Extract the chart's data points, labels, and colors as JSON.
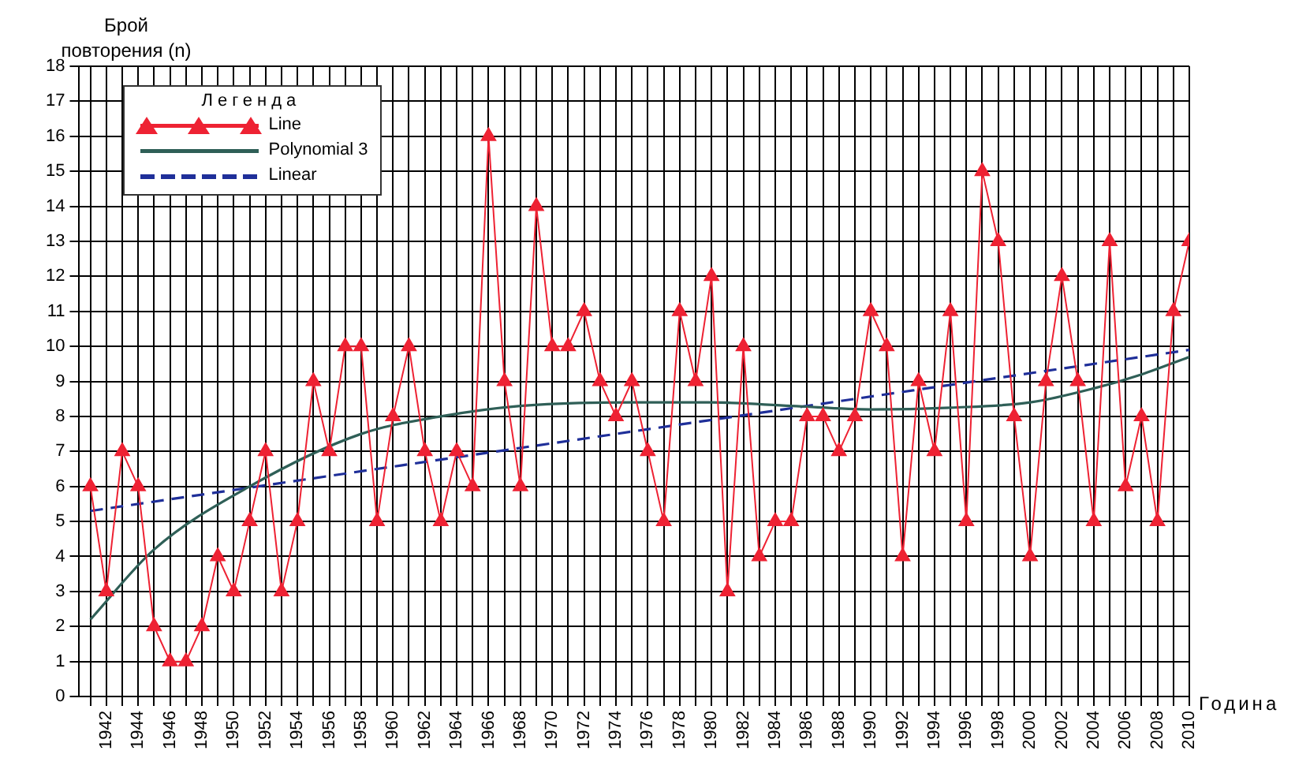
{
  "chart_data": {
    "type": "line",
    "ylabel": "Брой\nповторения (n)",
    "xlabel": "Година",
    "legend_title": "Легенда",
    "legend": "top left",
    "grid": true,
    "x": [
      1941,
      1942,
      1943,
      1944,
      1945,
      1946,
      1947,
      1948,
      1949,
      1950,
      1951,
      1952,
      1953,
      1954,
      1955,
      1956,
      1957,
      1958,
      1959,
      1960,
      1961,
      1962,
      1963,
      1964,
      1965,
      1966,
      1967,
      1968,
      1969,
      1970,
      1971,
      1972,
      1973,
      1974,
      1975,
      1976,
      1977,
      1978,
      1979,
      1980,
      1981,
      1982,
      1983,
      1984,
      1985,
      1986,
      1987,
      1988,
      1989,
      1990,
      1991,
      1992,
      1993,
      1994,
      1995,
      1996,
      1997,
      1998,
      1999,
      2000,
      2001,
      2002,
      2003,
      2004,
      2005,
      2006,
      2007,
      2008,
      2009,
      2010
    ],
    "series": [
      {
        "name": "Line",
        "color": "#ee2233",
        "marker": "triangle",
        "line_style": "solid",
        "values": [
          6,
          3,
          7,
          6,
          2,
          1,
          1,
          2,
          4,
          3,
          5,
          7,
          3,
          5,
          9,
          7,
          10,
          10,
          5,
          8,
          10,
          7,
          5,
          7,
          6,
          16,
          9,
          6,
          14,
          10,
          10,
          11,
          9,
          8,
          9,
          7,
          5,
          11,
          9,
          12,
          3,
          10,
          4,
          5,
          5,
          8,
          8,
          7,
          8,
          11,
          10,
          4,
          9,
          7,
          11,
          5,
          15,
          13,
          8,
          4,
          9,
          12,
          9,
          5,
          13,
          6,
          8,
          5,
          11,
          13
        ]
      },
      {
        "name": "Polynomial 3",
        "color": "#2f5f57",
        "marker": "none",
        "line_style": "solid",
        "x": [
          1941,
          1945,
          1951,
          1958,
          1963,
          1968,
          1975,
          1980,
          1985,
          1990,
          1995,
          2000,
          2004,
          2007,
          2010
        ],
        "values": [
          2.2,
          4.2,
          6.0,
          7.5,
          8.0,
          8.3,
          8.4,
          8.4,
          8.3,
          8.2,
          8.25,
          8.4,
          8.8,
          9.2,
          9.7
        ]
      },
      {
        "name": "Linear",
        "color": "#1f2f99",
        "marker": "none",
        "line_style": "dashed",
        "x": [
          1941,
          2010
        ],
        "values": [
          5.3,
          9.9
        ]
      }
    ],
    "xlim": [
      1940.3,
      2010
    ],
    "xticks": [
      {
        "value": 1941,
        "label": null
      },
      1942,
      {
        "value": 1943,
        "label": null
      },
      1944,
      {
        "value": 1945,
        "label": null
      },
      1946,
      {
        "value": 1947,
        "label": null
      },
      1948,
      {
        "value": 1949,
        "label": null
      },
      1950,
      {
        "value": 1951,
        "label": null
      },
      1952,
      {
        "value": 1953,
        "label": null
      },
      1954,
      {
        "value": 1955,
        "label": null
      },
      1956,
      {
        "value": 1957,
        "label": null
      },
      1958,
      {
        "value": 1959,
        "label": null
      },
      1960,
      {
        "value": 1961,
        "label": null
      },
      1962,
      {
        "value": 1963,
        "label": null
      },
      1964,
      {
        "value": 1965,
        "label": null
      },
      1966,
      {
        "value": 1967,
        "label": null
      },
      1968,
      {
        "value": 1969,
        "label": null
      },
      1970,
      {
        "value": 1971,
        "label": null
      },
      1972,
      {
        "value": 1973,
        "label": null
      },
      1974,
      {
        "value": 1975,
        "label": null
      },
      1976,
      {
        "value": 1977,
        "label": null
      },
      1978,
      {
        "value": 1979,
        "label": null
      },
      1980,
      {
        "value": 1981,
        "label": null
      },
      1982,
      {
        "value": 1983,
        "label": null
      },
      1984,
      {
        "value": 1985,
        "label": null
      },
      1986,
      {
        "value": 1987,
        "label": null
      },
      1988,
      {
        "value": 1989,
        "label": null
      },
      1990,
      {
        "value": 1991,
        "label": null
      },
      1992,
      {
        "value": 1993,
        "label": null
      },
      1994,
      {
        "value": 1995,
        "label": null
      },
      1996,
      {
        "value": 1997,
        "label": null
      },
      1998,
      {
        "value": 1999,
        "label": null
      },
      2000,
      {
        "value": 2001,
        "label": null
      },
      2002,
      {
        "value": 2003,
        "label": null
      },
      2004,
      {
        "value": 2005,
        "label": null
      },
      2006,
      {
        "value": 2007,
        "label": null
      },
      2008,
      {
        "value": 2009,
        "label": null
      },
      2010
    ],
    "ylim": [
      0,
      18
    ],
    "yticks": [
      0,
      1,
      2,
      3,
      4,
      5,
      6,
      7,
      8,
      9,
      10,
      11,
      12,
      13,
      14,
      15,
      16,
      17,
      18
    ]
  }
}
